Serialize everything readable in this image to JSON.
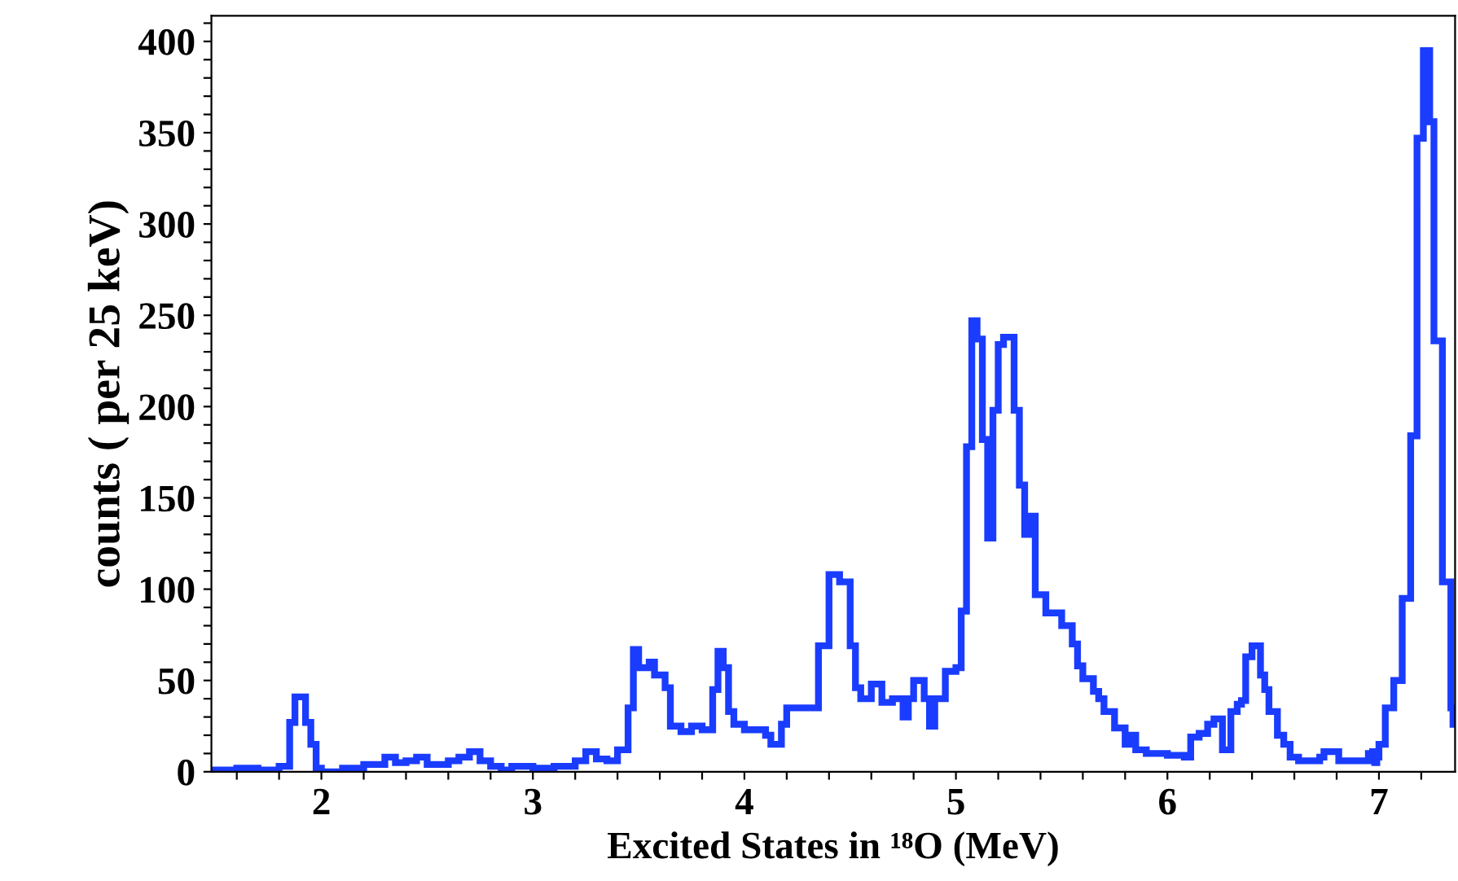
{
  "chart_data": {
    "type": "step",
    "xlabel": "Excited States in ¹⁸O (MeV)",
    "ylabel": "counts ( per 25 keV)",
    "series": [
      {
        "color": "#1a3cff",
        "x": [
          1.48,
          1.6,
          1.7,
          1.8,
          1.85,
          1.875,
          1.925,
          1.95,
          1.975,
          2.0,
          2.1,
          2.2,
          2.3,
          2.35,
          2.4,
          2.45,
          2.5,
          2.6,
          2.65,
          2.7,
          2.75,
          2.8,
          2.85,
          2.9,
          3.0,
          3.1,
          3.2,
          3.25,
          3.3,
          3.35,
          3.4,
          3.45,
          3.475,
          3.5,
          3.55,
          3.575,
          3.625,
          3.65,
          3.7,
          3.75,
          3.8,
          3.85,
          3.875,
          3.9,
          3.925,
          3.95,
          4.0,
          4.1,
          4.125,
          4.175,
          4.2,
          4.35,
          4.4,
          4.45,
          4.5,
          4.525,
          4.55,
          4.6,
          4.65,
          4.7,
          4.75,
          4.775,
          4.8,
          4.85,
          4.875,
          4.9,
          4.95,
          5.0,
          5.025,
          5.05,
          5.075,
          5.1,
          5.125,
          5.15,
          5.175,
          5.2,
          5.225,
          5.25,
          5.275,
          5.3,
          5.325,
          5.35,
          5.375,
          5.4,
          5.425,
          5.45,
          5.5,
          5.55,
          5.575,
          5.6,
          5.65,
          5.675,
          5.7,
          5.75,
          5.8,
          5.825,
          5.85,
          5.9,
          5.95,
          6.0,
          6.08,
          6.11,
          6.15,
          6.19,
          6.22,
          6.26,
          6.3,
          6.33,
          6.35,
          6.37,
          6.4,
          6.44,
          6.46,
          6.48,
          6.52,
          6.55,
          6.58,
          6.62,
          6.72,
          6.74,
          6.81,
          6.95,
          6.97,
          6.98,
          6.99,
          7.0,
          7.03,
          7.07,
          7.11,
          7.15,
          7.18,
          7.21,
          7.24,
          7.26,
          7.3,
          7.34,
          7.35
        ],
        "values": [
          1,
          2,
          1,
          3,
          27,
          41,
          27,
          15,
          2,
          0,
          2,
          4,
          8,
          5,
          6,
          8,
          4,
          6,
          8,
          11,
          6,
          3,
          1,
          3,
          2,
          3,
          6,
          11,
          7,
          6,
          12,
          35,
          67,
          57,
          60,
          53,
          46,
          25,
          22,
          25,
          23,
          45,
          66,
          57,
          33,
          26,
          23,
          20,
          15,
          26,
          35,
          69,
          108,
          104,
          69,
          46,
          40,
          48,
          38,
          40,
          30,
          40,
          50,
          40,
          25,
          40,
          55,
          57,
          88,
          178,
          247,
          237,
          182,
          128,
          198,
          234,
          238,
          238,
          198,
          157,
          130,
          140,
          97,
          97,
          87,
          87,
          80,
          70,
          58,
          51,
          44,
          40,
          33,
          24,
          15,
          20,
          12,
          10,
          10,
          9,
          8,
          19,
          21,
          26,
          29,
          12,
          33,
          37,
          39,
          63,
          69,
          53,
          45,
          33,
          20,
          15,
          8,
          6,
          8,
          11,
          6,
          10,
          11,
          5,
          8,
          15,
          35,
          50,
          95,
          184,
          347,
          395,
          356,
          236,
          104,
          35,
          26
        ]
      }
    ],
    "xlim": [
      1.48,
      7.36
    ],
    "xticks": [
      {
        "value": 1.6,
        "label": null
      },
      {
        "value": 1.8,
        "label": null
      },
      2,
      {
        "value": 2.2,
        "label": null
      },
      {
        "value": 2.4,
        "label": null
      },
      {
        "value": 2.6,
        "label": null
      },
      {
        "value": 2.8,
        "label": null
      },
      3,
      {
        "value": 3.2,
        "label": null
      },
      {
        "value": 3.4,
        "label": null
      },
      {
        "value": 3.6,
        "label": null
      },
      {
        "value": 3.8,
        "label": null
      },
      4,
      {
        "value": 4.2,
        "label": null
      },
      {
        "value": 4.4,
        "label": null
      },
      {
        "value": 4.6,
        "label": null
      },
      {
        "value": 4.8,
        "label": null
      },
      5,
      {
        "value": 5.2,
        "label": null
      },
      {
        "value": 5.4,
        "label": null
      },
      {
        "value": 5.6,
        "label": null
      },
      {
        "value": 5.8,
        "label": null
      },
      6,
      {
        "value": 6.2,
        "label": null
      },
      {
        "value": 6.4,
        "label": null
      },
      {
        "value": 6.6,
        "label": null
      },
      {
        "value": 6.8,
        "label": null
      },
      7,
      {
        "value": 7.2,
        "label": null
      }
    ],
    "ylim": [
      0,
      414
    ],
    "yticks": [
      0,
      {
        "value": 10,
        "label": null
      },
      {
        "value": 20,
        "label": null
      },
      {
        "value": 30,
        "label": null
      },
      {
        "value": 40,
        "label": null
      },
      50,
      {
        "value": 60,
        "label": null
      },
      {
        "value": 70,
        "label": null
      },
      {
        "value": 80,
        "label": null
      },
      {
        "value": 90,
        "label": null
      },
      100,
      {
        "value": 110,
        "label": null
      },
      {
        "value": 120,
        "label": null
      },
      {
        "value": 130,
        "label": null
      },
      {
        "value": 140,
        "label": null
      },
      150,
      {
        "value": 160,
        "label": null
      },
      {
        "value": 170,
        "label": null
      },
      {
        "value": 180,
        "label": null
      },
      {
        "value": 190,
        "label": null
      },
      200,
      {
        "value": 210,
        "label": null
      },
      {
        "value": 220,
        "label": null
      },
      {
        "value": 230,
        "label": null
      },
      {
        "value": 240,
        "label": null
      },
      250,
      {
        "value": 260,
        "label": null
      },
      {
        "value": 270,
        "label": null
      },
      {
        "value": 280,
        "label": null
      },
      {
        "value": 290,
        "label": null
      },
      300,
      {
        "value": 310,
        "label": null
      },
      {
        "value": 320,
        "label": null
      },
      {
        "value": 330,
        "label": null
      },
      {
        "value": 340,
        "label": null
      },
      350,
      {
        "value": 360,
        "label": null
      },
      {
        "value": 370,
        "label": null
      },
      {
        "value": 380,
        "label": null
      },
      {
        "value": 390,
        "label": null
      },
      400,
      {
        "value": 410,
        "label": null
      }
    ],
    "grid": false,
    "legend": false
  }
}
